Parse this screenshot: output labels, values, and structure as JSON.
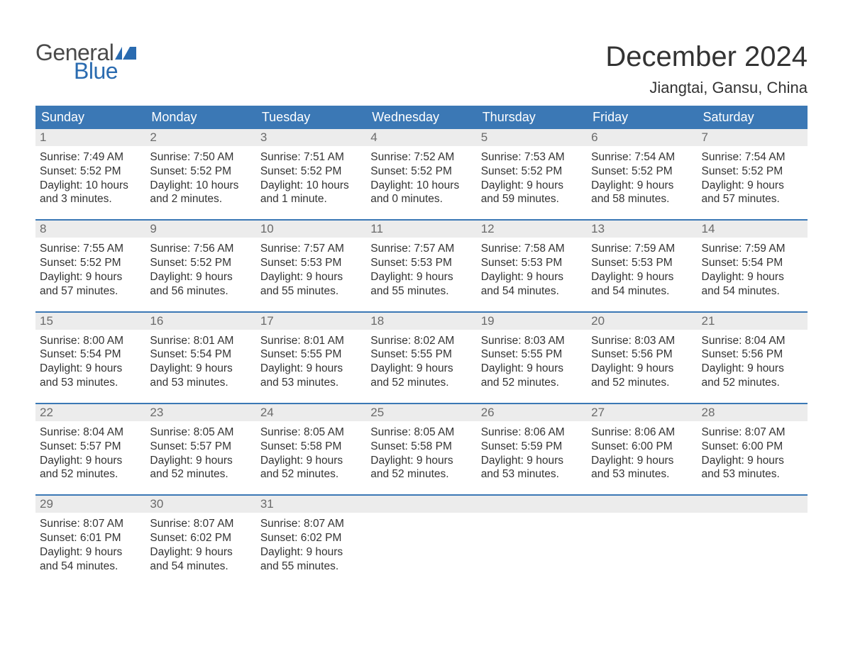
{
  "brand": {
    "word1": "General",
    "word2": "Blue",
    "word1_color": "#4a4a4a",
    "word2_color": "#2a6bb0",
    "flag_color": "#2a6bb0"
  },
  "title": "December 2024",
  "location": "Jiangtai, Gansu, China",
  "colors": {
    "header_bg": "#3b78b5",
    "header_text": "#ffffff",
    "daynum_bg": "#ececec",
    "daynum_text": "#6b6b6b",
    "body_text": "#333333",
    "week_border": "#3b78b5",
    "page_bg": "#ffffff"
  },
  "weekdays": [
    "Sunday",
    "Monday",
    "Tuesday",
    "Wednesday",
    "Thursday",
    "Friday",
    "Saturday"
  ],
  "weeks": [
    [
      {
        "n": "1",
        "sr": "Sunrise: 7:49 AM",
        "ss": "Sunset: 5:52 PM",
        "dl": "Daylight: 10 hours and 3 minutes."
      },
      {
        "n": "2",
        "sr": "Sunrise: 7:50 AM",
        "ss": "Sunset: 5:52 PM",
        "dl": "Daylight: 10 hours and 2 minutes."
      },
      {
        "n": "3",
        "sr": "Sunrise: 7:51 AM",
        "ss": "Sunset: 5:52 PM",
        "dl": "Daylight: 10 hours and 1 minute."
      },
      {
        "n": "4",
        "sr": "Sunrise: 7:52 AM",
        "ss": "Sunset: 5:52 PM",
        "dl": "Daylight: 10 hours and 0 minutes."
      },
      {
        "n": "5",
        "sr": "Sunrise: 7:53 AM",
        "ss": "Sunset: 5:52 PM",
        "dl": "Daylight: 9 hours and 59 minutes."
      },
      {
        "n": "6",
        "sr": "Sunrise: 7:54 AM",
        "ss": "Sunset: 5:52 PM",
        "dl": "Daylight: 9 hours and 58 minutes."
      },
      {
        "n": "7",
        "sr": "Sunrise: 7:54 AM",
        "ss": "Sunset: 5:52 PM",
        "dl": "Daylight: 9 hours and 57 minutes."
      }
    ],
    [
      {
        "n": "8",
        "sr": "Sunrise: 7:55 AM",
        "ss": "Sunset: 5:52 PM",
        "dl": "Daylight: 9 hours and 57 minutes."
      },
      {
        "n": "9",
        "sr": "Sunrise: 7:56 AM",
        "ss": "Sunset: 5:52 PM",
        "dl": "Daylight: 9 hours and 56 minutes."
      },
      {
        "n": "10",
        "sr": "Sunrise: 7:57 AM",
        "ss": "Sunset: 5:53 PM",
        "dl": "Daylight: 9 hours and 55 minutes."
      },
      {
        "n": "11",
        "sr": "Sunrise: 7:57 AM",
        "ss": "Sunset: 5:53 PM",
        "dl": "Daylight: 9 hours and 55 minutes."
      },
      {
        "n": "12",
        "sr": "Sunrise: 7:58 AM",
        "ss": "Sunset: 5:53 PM",
        "dl": "Daylight: 9 hours and 54 minutes."
      },
      {
        "n": "13",
        "sr": "Sunrise: 7:59 AM",
        "ss": "Sunset: 5:53 PM",
        "dl": "Daylight: 9 hours and 54 minutes."
      },
      {
        "n": "14",
        "sr": "Sunrise: 7:59 AM",
        "ss": "Sunset: 5:54 PM",
        "dl": "Daylight: 9 hours and 54 minutes."
      }
    ],
    [
      {
        "n": "15",
        "sr": "Sunrise: 8:00 AM",
        "ss": "Sunset: 5:54 PM",
        "dl": "Daylight: 9 hours and 53 minutes."
      },
      {
        "n": "16",
        "sr": "Sunrise: 8:01 AM",
        "ss": "Sunset: 5:54 PM",
        "dl": "Daylight: 9 hours and 53 minutes."
      },
      {
        "n": "17",
        "sr": "Sunrise: 8:01 AM",
        "ss": "Sunset: 5:55 PM",
        "dl": "Daylight: 9 hours and 53 minutes."
      },
      {
        "n": "18",
        "sr": "Sunrise: 8:02 AM",
        "ss": "Sunset: 5:55 PM",
        "dl": "Daylight: 9 hours and 52 minutes."
      },
      {
        "n": "19",
        "sr": "Sunrise: 8:03 AM",
        "ss": "Sunset: 5:55 PM",
        "dl": "Daylight: 9 hours and 52 minutes."
      },
      {
        "n": "20",
        "sr": "Sunrise: 8:03 AM",
        "ss": "Sunset: 5:56 PM",
        "dl": "Daylight: 9 hours and 52 minutes."
      },
      {
        "n": "21",
        "sr": "Sunrise: 8:04 AM",
        "ss": "Sunset: 5:56 PM",
        "dl": "Daylight: 9 hours and 52 minutes."
      }
    ],
    [
      {
        "n": "22",
        "sr": "Sunrise: 8:04 AM",
        "ss": "Sunset: 5:57 PM",
        "dl": "Daylight: 9 hours and 52 minutes."
      },
      {
        "n": "23",
        "sr": "Sunrise: 8:05 AM",
        "ss": "Sunset: 5:57 PM",
        "dl": "Daylight: 9 hours and 52 minutes."
      },
      {
        "n": "24",
        "sr": "Sunrise: 8:05 AM",
        "ss": "Sunset: 5:58 PM",
        "dl": "Daylight: 9 hours and 52 minutes."
      },
      {
        "n": "25",
        "sr": "Sunrise: 8:05 AM",
        "ss": "Sunset: 5:58 PM",
        "dl": "Daylight: 9 hours and 52 minutes."
      },
      {
        "n": "26",
        "sr": "Sunrise: 8:06 AM",
        "ss": "Sunset: 5:59 PM",
        "dl": "Daylight: 9 hours and 53 minutes."
      },
      {
        "n": "27",
        "sr": "Sunrise: 8:06 AM",
        "ss": "Sunset: 6:00 PM",
        "dl": "Daylight: 9 hours and 53 minutes."
      },
      {
        "n": "28",
        "sr": "Sunrise: 8:07 AM",
        "ss": "Sunset: 6:00 PM",
        "dl": "Daylight: 9 hours and 53 minutes."
      }
    ],
    [
      {
        "n": "29",
        "sr": "Sunrise: 8:07 AM",
        "ss": "Sunset: 6:01 PM",
        "dl": "Daylight: 9 hours and 54 minutes."
      },
      {
        "n": "30",
        "sr": "Sunrise: 8:07 AM",
        "ss": "Sunset: 6:02 PM",
        "dl": "Daylight: 9 hours and 54 minutes."
      },
      {
        "n": "31",
        "sr": "Sunrise: 8:07 AM",
        "ss": "Sunset: 6:02 PM",
        "dl": "Daylight: 9 hours and 55 minutes."
      },
      null,
      null,
      null,
      null
    ]
  ]
}
